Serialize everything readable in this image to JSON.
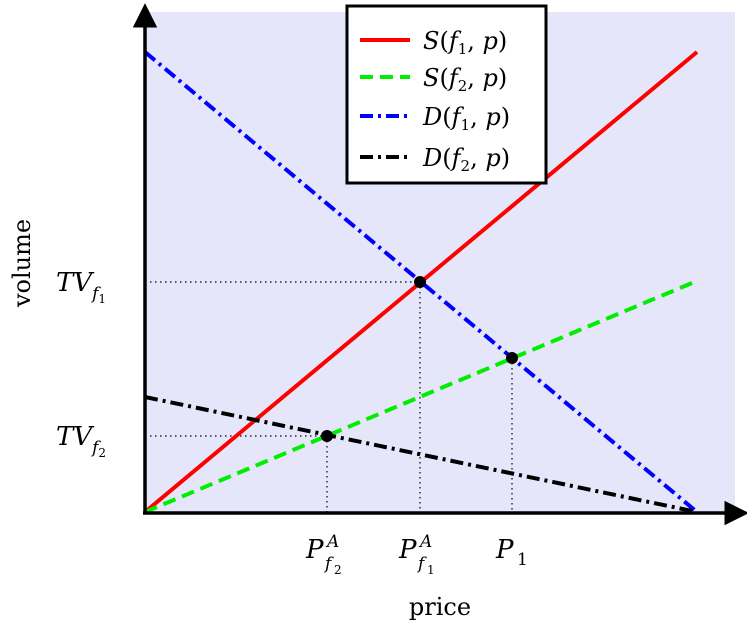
{
  "axes": {
    "x_label": "price",
    "y_label": "volume"
  },
  "legend": {
    "entries": [
      {
        "id": "s1",
        "func": "S",
        "sub": "1",
        "color": "#ff0000",
        "style": "solid"
      },
      {
        "id": "s2",
        "func": "S",
        "sub": "2",
        "color": "#00ee00",
        "style": "dashed"
      },
      {
        "id": "d1",
        "func": "D",
        "sub": "1",
        "color": "#0000ff",
        "style": "dashdot"
      },
      {
        "id": "d2",
        "func": "D",
        "sub": "2",
        "color": "#000000",
        "style": "dashdot"
      }
    ],
    "prefix_var": "f",
    "second_arg": "p"
  },
  "ticks": {
    "x": [
      {
        "id": "pf2",
        "main": "P",
        "sup": "A",
        "sub_base": "f",
        "sub_index": "2"
      },
      {
        "id": "pf1",
        "main": "P",
        "sup": "A",
        "sub_base": "f",
        "sub_index": "1"
      },
      {
        "id": "p1",
        "main": "P",
        "sub": "1"
      }
    ],
    "y": [
      {
        "id": "tvf1",
        "main": "TV",
        "sub_base": "f",
        "sub_index": "1"
      },
      {
        "id": "tvf2",
        "main": "TV",
        "sub_base": "f",
        "sub_index": "2"
      }
    ]
  },
  "colors": {
    "plot_background": "#e6e6fa",
    "supply_f1": "#ff0000",
    "supply_f2": "#00ee00",
    "demand_f1": "#0000ff",
    "demand_f2": "#000000"
  }
}
